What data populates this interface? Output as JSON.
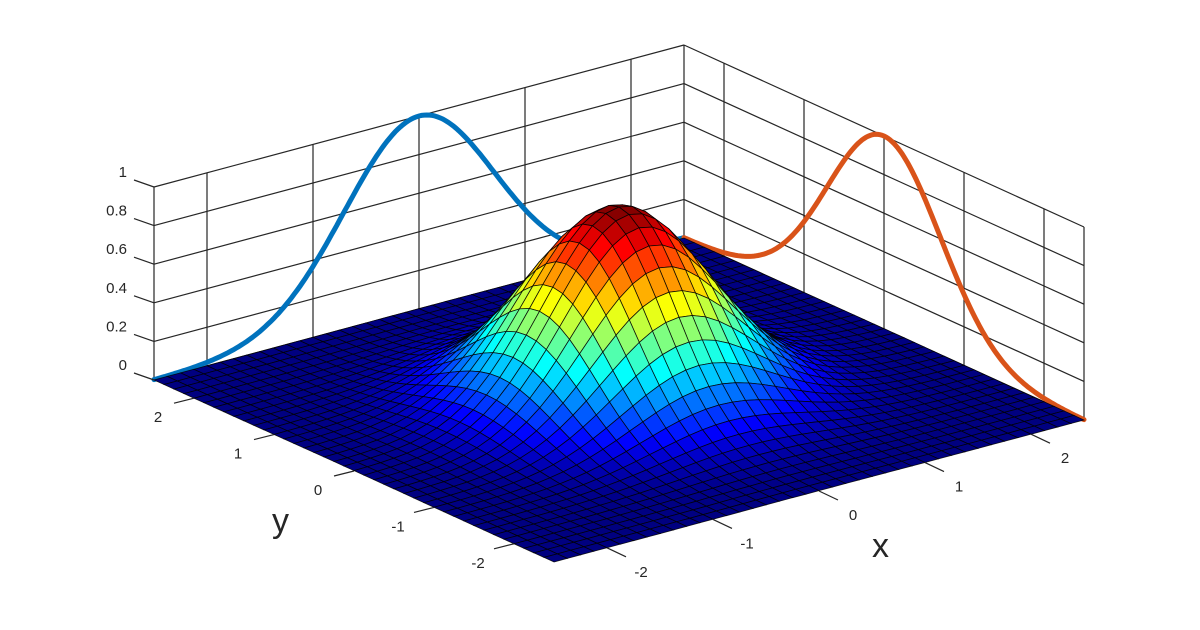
{
  "chart_data": {
    "type": "surface",
    "title": "",
    "xlabel": "x",
    "ylabel": "y",
    "zlabel": "",
    "xlim": [
      -2.5,
      2.5
    ],
    "ylim": [
      -2.5,
      2.5
    ],
    "zlim": [
      0,
      1
    ],
    "x_ticks": [
      "-2",
      "-1",
      "0",
      "1",
      "2"
    ],
    "y_ticks": [
      "-2",
      "-1",
      "0",
      "1",
      "2"
    ],
    "z_ticks": [
      "0",
      "0.2",
      "0.4",
      "0.6",
      "0.8",
      "1"
    ],
    "grid": true,
    "colormap": "jet",
    "surface": {
      "formula": "z = exp(-(x^2 + y^2))",
      "peak": 1,
      "grid_points": 41
    },
    "series": [
      {
        "plane": "y = 2.5 (back wall)",
        "formula": "exp(-x^2)",
        "color": "#0072BD"
      },
      {
        "plane": "x = 2.5 (back wall)",
        "formula": "exp(-y^2)",
        "color": "#D95319"
      }
    ]
  }
}
